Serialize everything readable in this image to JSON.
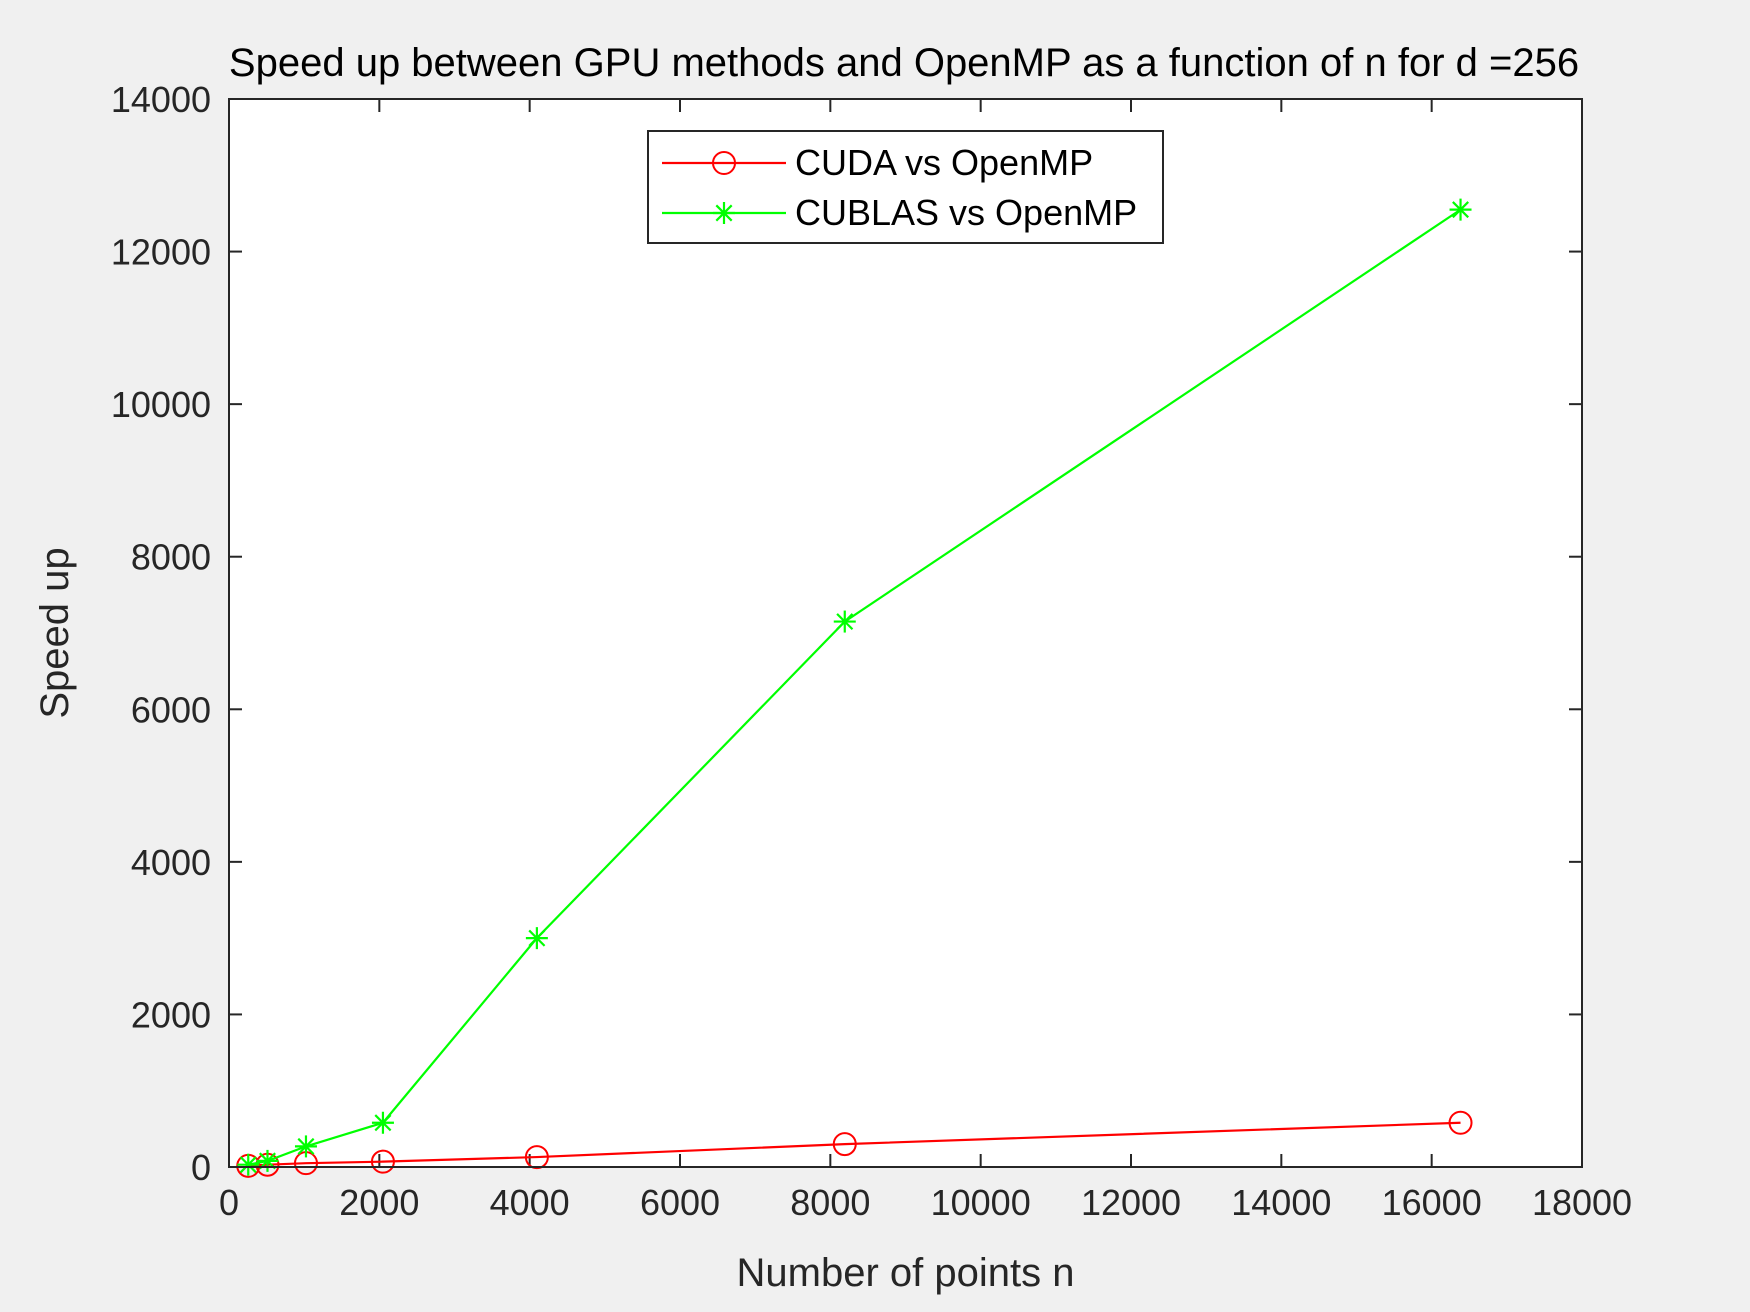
{
  "chart_data": {
    "type": "line",
    "title": "Speed up between GPU methods and OpenMP as a function of n for d =256",
    "xlabel": "Number of points n",
    "ylabel": "Speed up",
    "xlim": [
      0,
      18000
    ],
    "ylim": [
      0,
      14000
    ],
    "xticks": [
      0,
      2000,
      4000,
      6000,
      8000,
      10000,
      12000,
      14000,
      16000,
      18000
    ],
    "yticks": [
      0,
      2000,
      4000,
      6000,
      8000,
      10000,
      12000,
      14000
    ],
    "grid": false,
    "legend_position": "top-center",
    "x": [
      256,
      512,
      1024,
      2048,
      4096,
      8192,
      16384
    ],
    "series": [
      {
        "name": "CUDA vs OpenMP",
        "color": "#ff0000",
        "marker": "circle",
        "values": [
          15,
          30,
          50,
          70,
          130,
          300,
          580
        ]
      },
      {
        "name": "CUBLAS vs OpenMP",
        "color": "#00ff00",
        "marker": "asterisk",
        "values": [
          30,
          80,
          270,
          580,
          3000,
          7150,
          12550
        ]
      }
    ]
  }
}
